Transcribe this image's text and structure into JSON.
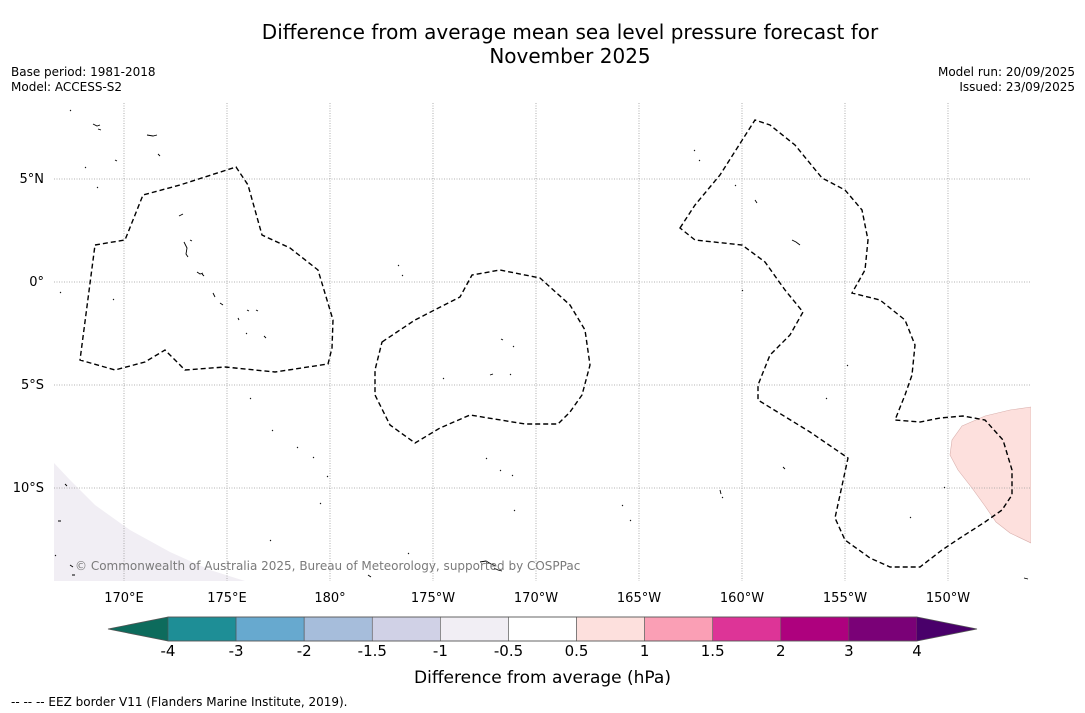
{
  "map": {
    "title_line1": "Difference from average mean sea level pressure forecast for",
    "title_line2": "November 2025",
    "base_period": "Base period: 1981-2018",
    "model": "Model: ACCESS-S2",
    "model_run": "Model run: 20/09/2025",
    "issued": "Issued: 23/09/2025",
    "copyright": "© Commonwealth of Australia 2025, Bureau of Meteorology, supported by COSPPac",
    "footnote": "--  --  -- EEZ border V11 (Flanders Marine Institute, 2019).",
    "lon_labels": [
      "170°E",
      "175°E",
      "180°",
      "175°W",
      "170°W",
      "165°W",
      "160°W",
      "155°W",
      "150°W"
    ],
    "lat_labels": [
      "5°N",
      "0°",
      "5°S",
      "10°S"
    ],
    "colorbar": {
      "title": "Difference from average (hPa)",
      "ticks": [
        "-4",
        "-3",
        "-2",
        "-1.5",
        "-1",
        "-0.5",
        "0.5",
        "1",
        "1.5",
        "2",
        "3",
        "4"
      ],
      "colors": [
        "#1e8e96",
        "#67a9cf",
        "#a6bddb",
        "#d0d1e6",
        "#f1eef4",
        "#ffffff",
        "#fde0dd",
        "#fa9fb5",
        "#dd3497",
        "#ae017e",
        "#7a0177"
      ],
      "low_extend_color": "#0d6b5c",
      "high_extend_color": "#49006a"
    },
    "anomaly_colors": {
      "negative_area": "#f1eef4",
      "positive_area": "#fde0dd"
    }
  }
}
